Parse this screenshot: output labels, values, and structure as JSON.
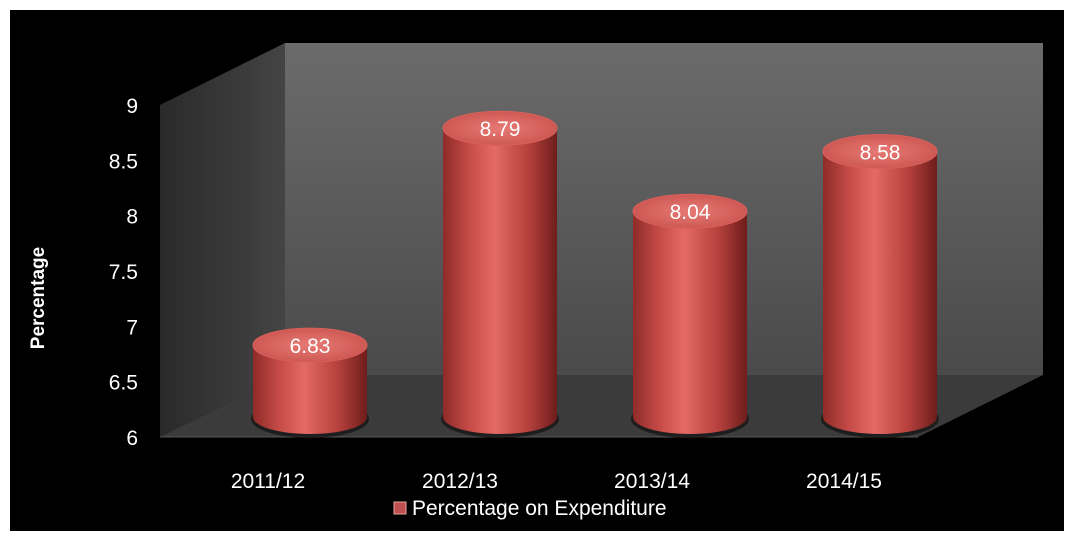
{
  "chart_data": {
    "type": "bar",
    "style": "3d-cylinder",
    "categories": [
      "2011/12",
      "2012/13",
      "2013/14",
      "2014/15"
    ],
    "series": [
      {
        "name": "Percentage on Expenditure",
        "values": [
          6.83,
          8.79,
          8.04,
          8.58
        ],
        "data_labels": [
          "6.83",
          "8.79",
          "8.04",
          "8.58"
        ]
      }
    ],
    "ylabel": "Percentage",
    "xlabel": "",
    "ylim": [
      6,
      9
    ],
    "y_ticks": [
      "6",
      "6.5",
      "7",
      "7.5",
      "8",
      "8.5",
      "9"
    ],
    "legend_position": "bottom",
    "grid": false,
    "colors": {
      "background": "#000000",
      "bar": "#c0504d",
      "bar_top": "#e06b66",
      "back_wall": "#595959",
      "floor": "#3a3a3a",
      "text": "#ffffff"
    }
  }
}
